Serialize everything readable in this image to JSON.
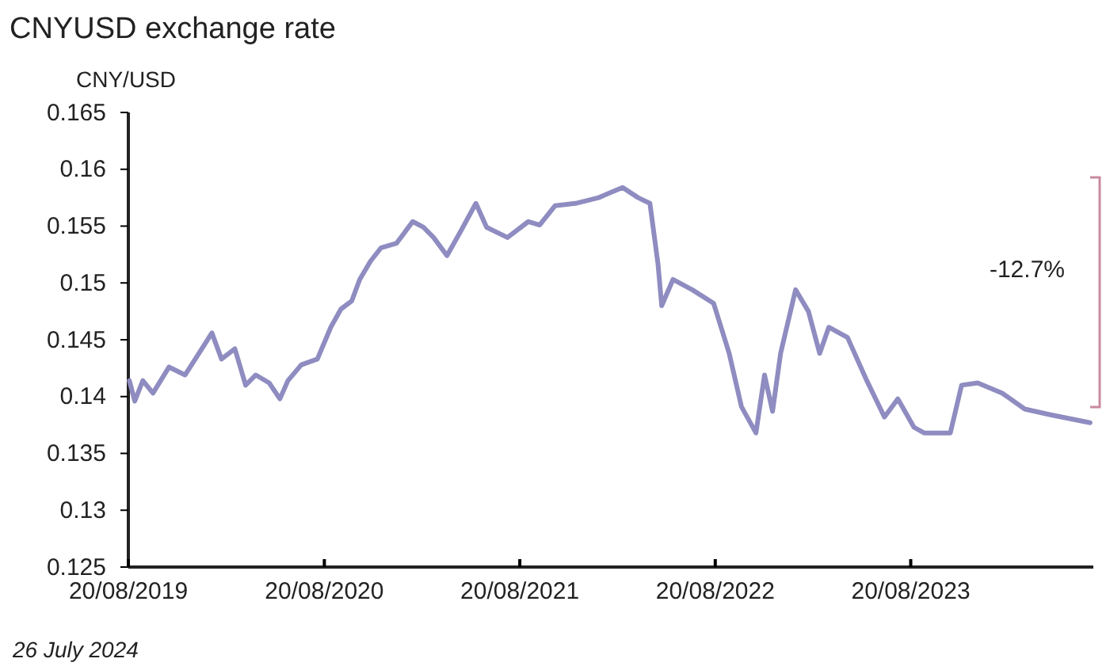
{
  "chart_data": {
    "type": "line",
    "title": "CNYUSD exchange rate",
    "ylabel": "CNY/USD",
    "annotations": [
      "-12.7%",
      "26 July 2024"
    ],
    "xlim": [
      "2019-08-20",
      "2024-07-26"
    ],
    "xticks": [
      {
        "value": "2019-08-20",
        "label": "20/08/2019"
      },
      {
        "value": "2020-08-20",
        "label": "20/08/2020"
      },
      {
        "value": "2021-08-20",
        "label": "20/08/2021"
      },
      {
        "value": "2022-08-20",
        "label": "20/08/2022"
      },
      {
        "value": "2023-08-20",
        "label": "20/08/2023"
      }
    ],
    "ylim": [
      0.125,
      0.165
    ],
    "yticks": [
      0.125,
      0.13,
      0.135,
      0.14,
      0.145,
      0.15,
      0.155,
      0.16,
      0.165
    ],
    "series": [
      {
        "color": "#8e8cc0",
        "x": [
          "2019-08-22",
          "2019-09-01",
          "2019-09-16",
          "2019-10-05",
          "2019-11-04",
          "2019-12-04",
          "2019-12-23",
          "2020-01-23",
          "2020-02-10",
          "2020-03-06",
          "2020-03-26",
          "2020-04-14",
          "2020-05-09",
          "2020-05-29",
          "2020-06-13",
          "2020-07-08",
          "2020-08-07",
          "2020-09-01",
          "2020-09-20",
          "2020-10-10",
          "2020-10-25",
          "2020-11-14",
          "2020-12-04",
          "2021-01-02",
          "2021-02-01",
          "2021-02-21",
          "2021-03-12",
          "2021-04-06",
          "2021-05-01",
          "2021-05-30",
          "2021-06-19",
          "2021-07-28",
          "2021-09-05",
          "2021-09-26",
          "2021-10-25",
          "2021-12-02",
          "2022-01-14",
          "2022-02-28",
          "2022-03-29",
          "2022-04-20",
          "2022-05-05",
          "2022-05-12",
          "2022-06-02",
          "2022-07-08",
          "2022-08-17",
          "2022-09-15",
          "2022-10-08",
          "2022-11-04",
          "2022-11-20",
          "2022-12-05",
          "2022-12-20",
          "2023-01-17",
          "2023-02-10",
          "2023-03-03",
          "2023-03-20",
          "2023-04-24",
          "2023-05-30",
          "2023-07-02",
          "2023-07-27",
          "2023-08-26",
          "2023-09-14",
          "2023-11-02",
          "2023-11-23",
          "2023-12-23",
          "2024-02-07",
          "2024-03-20",
          "2024-05-07",
          "2024-07-20"
        ],
        "values": [
          0.1414,
          0.1396,
          0.1414,
          0.1403,
          0.1426,
          0.1419,
          0.1433,
          0.1456,
          0.1433,
          0.1442,
          0.141,
          0.1419,
          0.1412,
          0.1398,
          0.1414,
          0.1428,
          0.1433,
          0.1461,
          0.1477,
          0.1484,
          0.1503,
          0.1519,
          0.1531,
          0.1535,
          0.1554,
          0.1549,
          0.154,
          0.1524,
          0.1545,
          0.157,
          0.1549,
          0.154,
          0.1554,
          0.1551,
          0.1568,
          0.157,
          0.1575,
          0.1584,
          0.1575,
          0.157,
          0.1517,
          0.148,
          0.1503,
          0.1494,
          0.1482,
          0.1438,
          0.1391,
          0.1368,
          0.1419,
          0.1387,
          0.1438,
          0.1494,
          0.1475,
          0.1438,
          0.1461,
          0.1452,
          0.1414,
          0.1382,
          0.1398,
          0.1373,
          0.1368,
          0.1368,
          0.141,
          0.1412,
          0.1403,
          0.1389,
          0.1384,
          0.1377
        ]
      }
    ]
  }
}
